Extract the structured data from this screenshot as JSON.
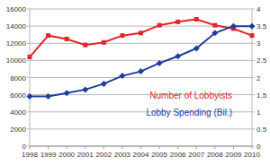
{
  "chart_data": {
    "type": "line",
    "categories": [
      "1998",
      "1999",
      "2000",
      "2001",
      "2002",
      "2003",
      "2004",
      "2005",
      "2006",
      "2007",
      "2008",
      "2009",
      "2010"
    ],
    "series": [
      {
        "name": "Number of Lobbyists",
        "color": "#e3262b",
        "marker": "square",
        "values": [
          10400,
          12900,
          12500,
          11800,
          12100,
          12900,
          13200,
          14100,
          14500,
          14800,
          14100,
          13700,
          12900
        ]
      },
      {
        "name": "Lobby Spending (Bil.)",
        "color": "#1d3c9c",
        "marker": "diamond",
        "axis": "y2",
        "values": [
          1.45,
          1.45,
          1.55,
          1.65,
          1.82,
          2.05,
          2.18,
          2.42,
          2.62,
          2.85,
          3.3,
          3.5,
          3.5
        ]
      }
    ],
    "ylim": [
      0,
      16000
    ],
    "yticks": [
      0,
      2000,
      4000,
      6000,
      8000,
      10000,
      12000,
      14000,
      16000
    ],
    "y2lim": [
      0,
      4
    ],
    "y2ticks": [
      0,
      0.5,
      1,
      1.5,
      2,
      2.5,
      3,
      3.5,
      4
    ],
    "grid": true,
    "legend": "bottom-right"
  }
}
